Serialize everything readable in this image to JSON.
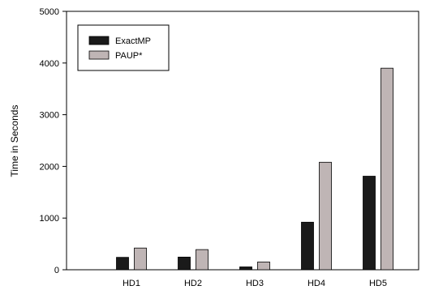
{
  "chart_data": {
    "type": "bar",
    "title": "",
    "xlabel": "",
    "ylabel": "Time in Seconds",
    "ylim": [
      0,
      5000
    ],
    "yticks": [
      0,
      1000,
      2000,
      3000,
      4000,
      5000
    ],
    "categories": [
      "HD1",
      "HD2",
      "HD3",
      "HD4",
      "HD5"
    ],
    "series": [
      {
        "name": "ExactMP",
        "color": "#1a1a1a",
        "values": [
          240,
          245,
          55,
          920,
          1810
        ]
      },
      {
        "name": "PAUP*",
        "color": "#bfb5b5",
        "values": [
          420,
          390,
          150,
          2080,
          3900
        ]
      }
    ],
    "legend_position": "top-left",
    "grid": false
  }
}
